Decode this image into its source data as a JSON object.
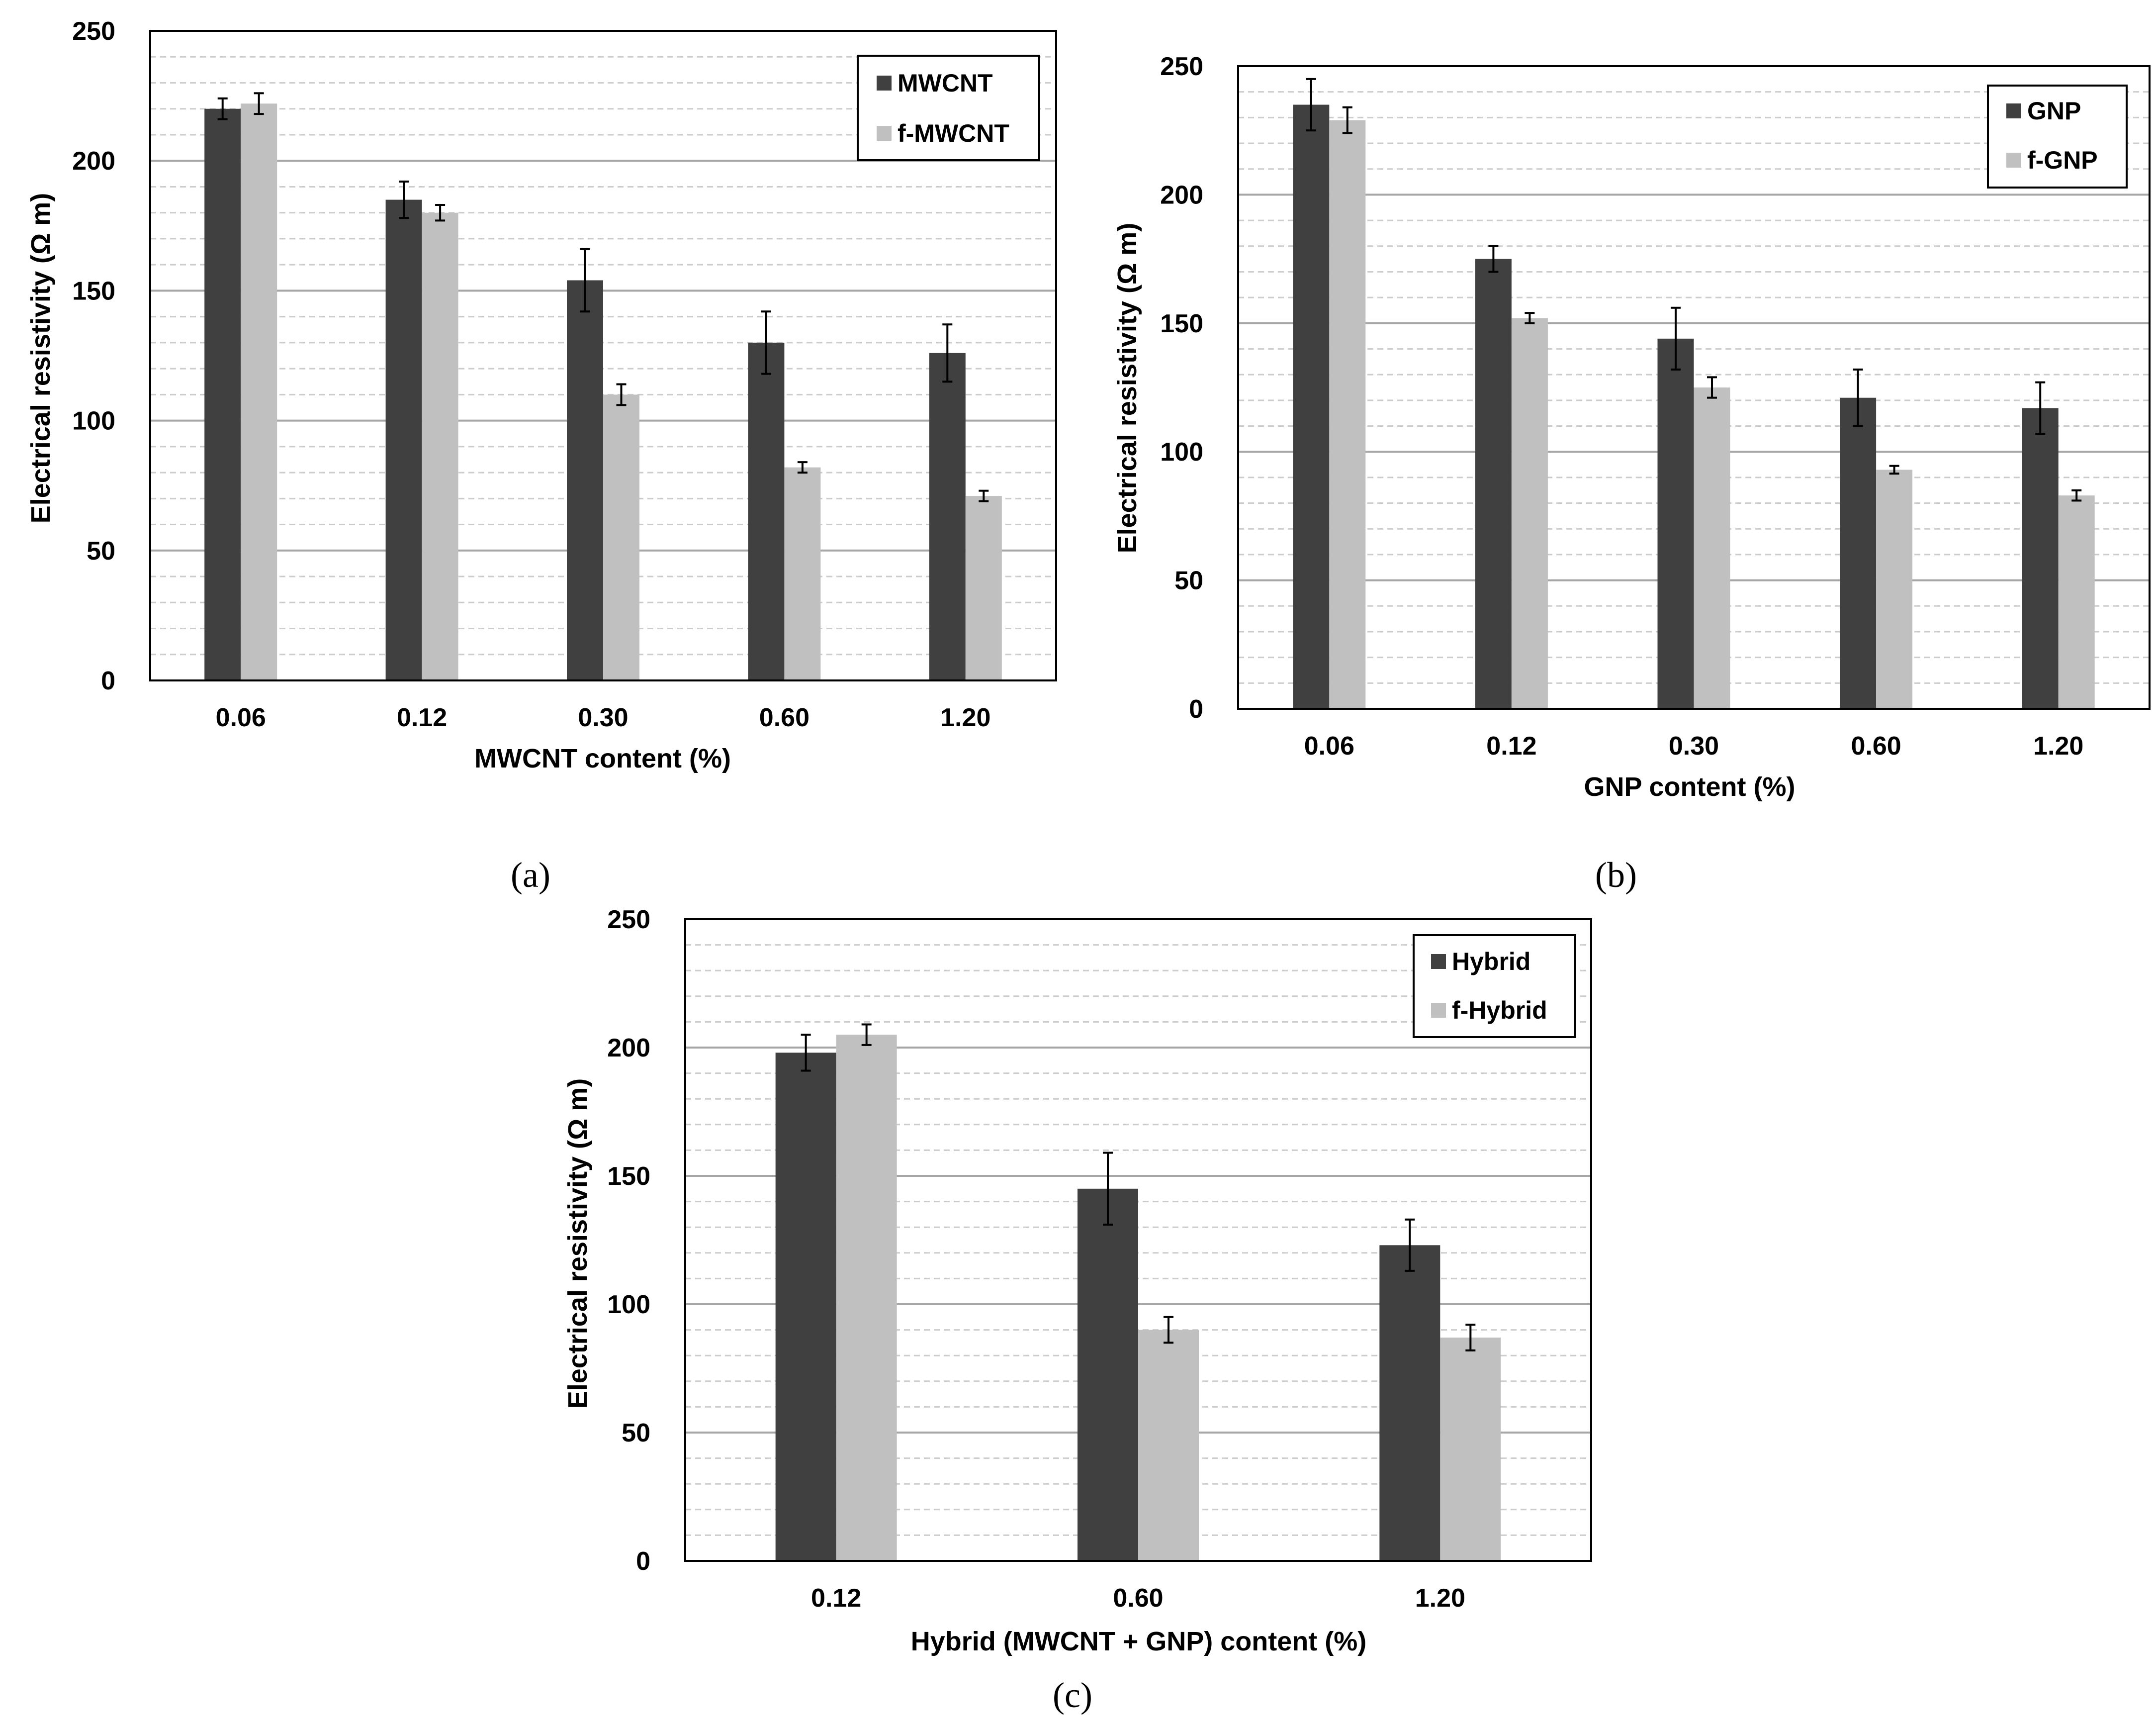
{
  "colors": {
    "primary_bar": "#404040",
    "secondary_bar": "#c0c0c0",
    "major_grid": "#a6a6a6",
    "minor_grid": "#cccccc",
    "frame": "#000000"
  },
  "chart_data": [
    {
      "type": "bar",
      "caption": "(a)",
      "title": "",
      "xlabel": "MWCNT content (%)",
      "ylabel": "Electrical resistivity (Ω m)",
      "ylim": [
        0,
        250
      ],
      "yticks": [
        "0",
        "50",
        "100",
        "150",
        "200",
        "250"
      ],
      "categories": [
        "0.06",
        "0.12",
        "0.30",
        "0.60",
        "1.20"
      ],
      "legend_position": "top-right",
      "series": [
        {
          "name": "MWCNT",
          "values": [
            220,
            185,
            154,
            130,
            126
          ],
          "errors": [
            4,
            7,
            12,
            12,
            11
          ]
        },
        {
          "name": "f-MWCNT",
          "values": [
            222,
            180,
            110,
            82,
            71
          ],
          "errors": [
            4,
            3,
            4,
            2,
            2
          ]
        }
      ]
    },
    {
      "type": "bar",
      "caption": "(b)",
      "title": "",
      "xlabel": "GNP content (%)",
      "ylabel": "Electrical resistivity (Ω m)",
      "ylim": [
        0,
        250
      ],
      "yticks": [
        "0",
        "50",
        "100",
        "150",
        "200",
        "250"
      ],
      "categories": [
        "0.06",
        "0.12",
        "0.30",
        "0.60",
        "1.20"
      ],
      "legend_position": "top-right",
      "series": [
        {
          "name": "GNP",
          "values": [
            235,
            175,
            144,
            121,
            117
          ],
          "errors": [
            10,
            5,
            12,
            11,
            10
          ]
        },
        {
          "name": "f-GNP",
          "values": [
            229,
            152,
            125,
            93,
            83
          ],
          "errors": [
            5,
            2,
            4,
            1.5,
            2
          ]
        }
      ]
    },
    {
      "type": "bar",
      "caption": "(c)",
      "title": "",
      "xlabel": "Hybrid (MWCNT + GNP) content (%)",
      "ylabel": "Electrical resistivity (Ω m)",
      "ylim": [
        0,
        250
      ],
      "yticks": [
        "0",
        "50",
        "100",
        "150",
        "200",
        "250"
      ],
      "categories": [
        "0.12",
        "0.60",
        "1.20"
      ],
      "legend_position": "top-right",
      "series": [
        {
          "name": "Hybrid",
          "values": [
            198,
            145,
            123
          ],
          "errors": [
            7,
            14,
            10
          ]
        },
        {
          "name": "f-Hybrid",
          "values": [
            205,
            90,
            87
          ],
          "errors": [
            4,
            5,
            5
          ]
        }
      ]
    }
  ]
}
